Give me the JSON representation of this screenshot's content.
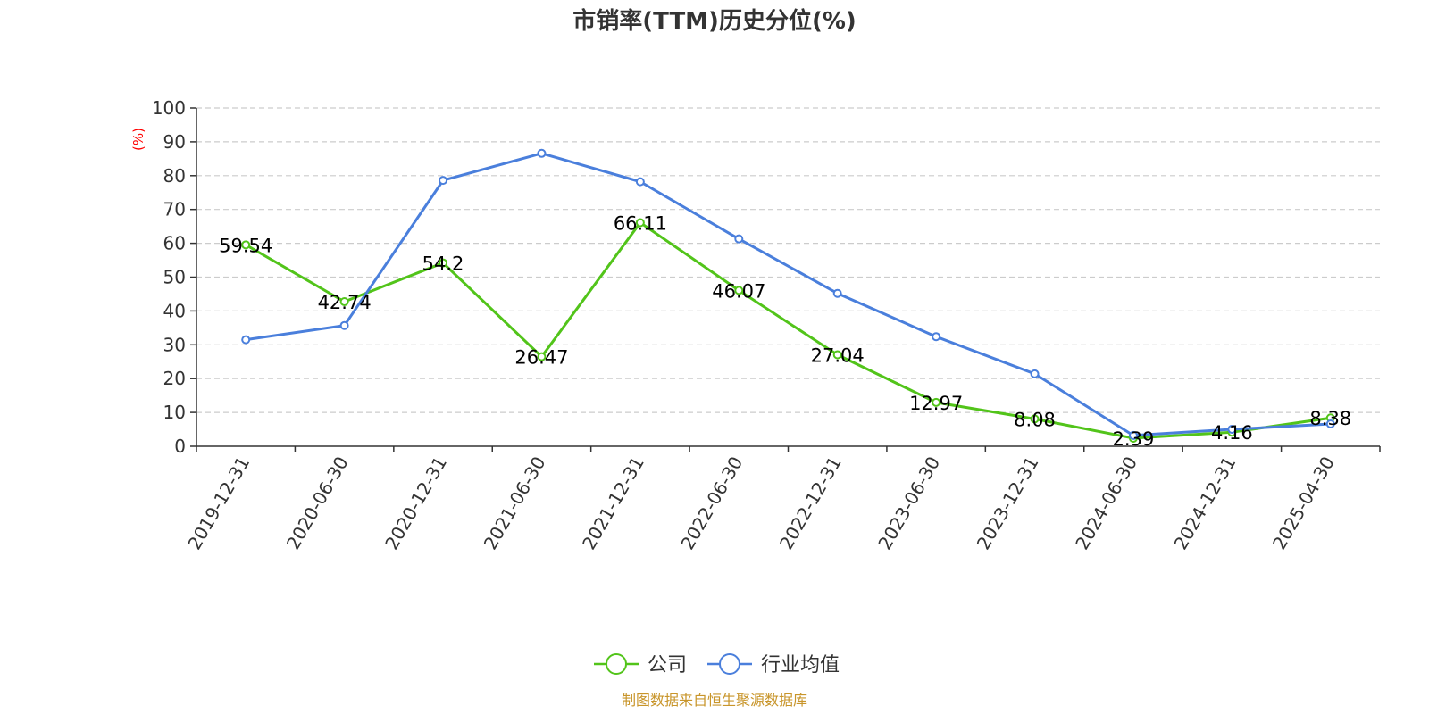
{
  "chart_data": {
    "type": "line",
    "title": "市销率(TTM)历史分位(%)",
    "ylabel": "(%)",
    "ylim": [
      0,
      100
    ],
    "yticks": [
      0,
      10,
      20,
      30,
      40,
      50,
      60,
      70,
      80,
      90,
      100
    ],
    "grid": true,
    "legend_position": "bottom",
    "categories": [
      "2019-12-31",
      "2020-06-30",
      "2020-12-31",
      "2021-06-30",
      "2021-12-31",
      "2022-06-30",
      "2022-12-31",
      "2023-06-30",
      "2023-12-31",
      "2024-06-30",
      "2024-12-31",
      "2025-04-30"
    ],
    "series": [
      {
        "name": "公司",
        "color": "#52c41a",
        "values": [
          59.54,
          42.74,
          54.2,
          26.47,
          66.11,
          46.07,
          27.04,
          12.97,
          8.08,
          2.39,
          4.16,
          8.38
        ],
        "show_labels": true
      },
      {
        "name": "行业均值",
        "color": "#4a7fdc",
        "values": [
          31.5,
          35.7,
          78.6,
          86.6,
          78.2,
          61.3,
          45.2,
          32.4,
          21.4,
          3.2,
          5.0,
          6.6
        ],
        "show_labels": false
      }
    ]
  },
  "source": {
    "text": "制图数据来自恒生聚源数据库",
    "color": "#c8952a"
  }
}
